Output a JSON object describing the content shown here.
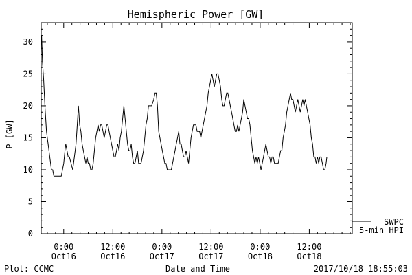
{
  "chart_data": {
    "type": "line",
    "title": "Hemispheric Power [GW]",
    "ylabel": "P [GW]",
    "xlabel": "Date and Time",
    "ylim": [
      0,
      33
    ],
    "xlim": [
      -5.5,
      70.5
    ],
    "x_unit": "hours since 2017-10-16 00:00",
    "yticks": [
      0,
      5,
      10,
      15,
      20,
      25,
      30
    ],
    "xticks": [
      {
        "x": 0,
        "time": "0:00",
        "date": "Oct16"
      },
      {
        "x": 12,
        "time": "12:00",
        "date": "Oct16"
      },
      {
        "x": 24,
        "time": "0:00",
        "date": "Oct17"
      },
      {
        "x": 36,
        "time": "12:00",
        "date": "Oct17"
      },
      {
        "x": 48,
        "time": "0:00",
        "date": "Oct18"
      },
      {
        "x": 60,
        "time": "12:00",
        "date": "Oct18"
      }
    ],
    "grid": false,
    "legend": {
      "source": "SWPC",
      "series": "5-min HPI",
      "placement": "bottom-right, outside"
    },
    "series": [
      {
        "name": "5-min HPI",
        "points": [
          [
            -5.4,
            31
          ],
          [
            -5.2,
            27
          ],
          [
            -4.9,
            24
          ],
          [
            -4.6,
            20
          ],
          [
            -4.2,
            16
          ],
          [
            -3.8,
            14
          ],
          [
            -3.4,
            12
          ],
          [
            -3.0,
            10
          ],
          [
            -2.7,
            10
          ],
          [
            -2.4,
            9
          ],
          [
            -1.5,
            9
          ],
          [
            -0.6,
            9
          ],
          [
            -0.3,
            10
          ],
          [
            0.0,
            11
          ],
          [
            0.3,
            13
          ],
          [
            0.5,
            14
          ],
          [
            0.8,
            13
          ],
          [
            1.1,
            12
          ],
          [
            1.4,
            12
          ],
          [
            1.8,
            11
          ],
          [
            2.2,
            10
          ],
          [
            2.6,
            12
          ],
          [
            3.0,
            14
          ],
          [
            3.3,
            17
          ],
          [
            3.6,
            20
          ],
          [
            3.9,
            17
          ],
          [
            4.2,
            16
          ],
          [
            4.5,
            14
          ],
          [
            4.8,
            13
          ],
          [
            5.1,
            12
          ],
          [
            5.4,
            11
          ],
          [
            5.7,
            12
          ],
          [
            6.0,
            11
          ],
          [
            6.3,
            11
          ],
          [
            6.6,
            10
          ],
          [
            6.9,
            10
          ],
          [
            7.2,
            11
          ],
          [
            7.5,
            13
          ],
          [
            7.8,
            15
          ],
          [
            8.1,
            16
          ],
          [
            8.4,
            17
          ],
          [
            8.7,
            16
          ],
          [
            9.0,
            17
          ],
          [
            9.3,
            17
          ],
          [
            9.6,
            16
          ],
          [
            9.9,
            15
          ],
          [
            10.2,
            16
          ],
          [
            10.5,
            17
          ],
          [
            10.8,
            17
          ],
          [
            11.1,
            16
          ],
          [
            11.4,
            15
          ],
          [
            11.7,
            14
          ],
          [
            12.0,
            13
          ],
          [
            12.3,
            12
          ],
          [
            12.6,
            12
          ],
          [
            12.9,
            13
          ],
          [
            13.2,
            14
          ],
          [
            13.5,
            13
          ],
          [
            13.8,
            15
          ],
          [
            14.1,
            16
          ],
          [
            14.4,
            18
          ],
          [
            14.7,
            20
          ],
          [
            15.0,
            18
          ],
          [
            15.3,
            16
          ],
          [
            15.6,
            14
          ],
          [
            15.9,
            13
          ],
          [
            16.2,
            13
          ],
          [
            16.5,
            14
          ],
          [
            16.8,
            12
          ],
          [
            17.1,
            11
          ],
          [
            17.4,
            11
          ],
          [
            17.7,
            12
          ],
          [
            18.0,
            13
          ],
          [
            18.3,
            11
          ],
          [
            18.6,
            11
          ],
          [
            18.9,
            11
          ],
          [
            19.2,
            12
          ],
          [
            19.5,
            13
          ],
          [
            19.8,
            15
          ],
          [
            20.1,
            17
          ],
          [
            20.4,
            18
          ],
          [
            20.7,
            20
          ],
          [
            21.0,
            20
          ],
          [
            21.5,
            20
          ],
          [
            22.0,
            21
          ],
          [
            22.3,
            22
          ],
          [
            22.6,
            22
          ],
          [
            22.9,
            20
          ],
          [
            23.2,
            16
          ],
          [
            23.5,
            15
          ],
          [
            23.8,
            14
          ],
          [
            24.1,
            13
          ],
          [
            24.4,
            12
          ],
          [
            24.7,
            11
          ],
          [
            25.0,
            11
          ],
          [
            25.3,
            10
          ],
          [
            25.6,
            10
          ],
          [
            26.0,
            10
          ],
          [
            26.3,
            10
          ],
          [
            26.6,
            11
          ],
          [
            26.9,
            12
          ],
          [
            27.2,
            13
          ],
          [
            27.5,
            14
          ],
          [
            27.8,
            15
          ],
          [
            28.1,
            16
          ],
          [
            28.4,
            14
          ],
          [
            28.7,
            14
          ],
          [
            29.0,
            13
          ],
          [
            29.3,
            12
          ],
          [
            29.6,
            12
          ],
          [
            29.9,
            13
          ],
          [
            30.2,
            12
          ],
          [
            30.5,
            11
          ],
          [
            30.8,
            13
          ],
          [
            31.1,
            15
          ],
          [
            31.4,
            16
          ],
          [
            31.7,
            17
          ],
          [
            32.0,
            17
          ],
          [
            32.3,
            17
          ],
          [
            32.6,
            16
          ],
          [
            32.9,
            16
          ],
          [
            33.2,
            16
          ],
          [
            33.5,
            15
          ],
          [
            33.8,
            16
          ],
          [
            34.1,
            17
          ],
          [
            34.4,
            18
          ],
          [
            34.7,
            19
          ],
          [
            35.0,
            20
          ],
          [
            35.3,
            22
          ],
          [
            35.6,
            23
          ],
          [
            35.9,
            24
          ],
          [
            36.2,
            25
          ],
          [
            36.5,
            24
          ],
          [
            36.8,
            23
          ],
          [
            37.1,
            24
          ],
          [
            37.4,
            25
          ],
          [
            37.7,
            25
          ],
          [
            38.0,
            24
          ],
          [
            38.3,
            23
          ],
          [
            38.6,
            21
          ],
          [
            38.9,
            20
          ],
          [
            39.2,
            20
          ],
          [
            39.5,
            21
          ],
          [
            39.8,
            22
          ],
          [
            40.1,
            22
          ],
          [
            40.4,
            21
          ],
          [
            40.7,
            20
          ],
          [
            41.0,
            19
          ],
          [
            41.3,
            18
          ],
          [
            41.6,
            17
          ],
          [
            41.9,
            16
          ],
          [
            42.2,
            16
          ],
          [
            42.5,
            17
          ],
          [
            42.8,
            16
          ],
          [
            43.1,
            17
          ],
          [
            43.4,
            18
          ],
          [
            43.7,
            19
          ],
          [
            44.0,
            21
          ],
          [
            44.3,
            20
          ],
          [
            44.6,
            19
          ],
          [
            44.9,
            18
          ],
          [
            45.2,
            18
          ],
          [
            45.5,
            17
          ],
          [
            45.8,
            15
          ],
          [
            46.1,
            13
          ],
          [
            46.4,
            12
          ],
          [
            46.7,
            11
          ],
          [
            47.0,
            12
          ],
          [
            47.3,
            11
          ],
          [
            47.6,
            12
          ],
          [
            47.9,
            11
          ],
          [
            48.2,
            10
          ],
          [
            48.5,
            11
          ],
          [
            48.8,
            12
          ],
          [
            49.1,
            13
          ],
          [
            49.4,
            14
          ],
          [
            49.7,
            13
          ],
          [
            50.0,
            12
          ],
          [
            50.3,
            12
          ],
          [
            50.6,
            11
          ],
          [
            50.9,
            12
          ],
          [
            51.2,
            12
          ],
          [
            51.5,
            11
          ],
          [
            51.8,
            11
          ],
          [
            52.1,
            11
          ],
          [
            52.4,
            11
          ],
          [
            52.7,
            12
          ],
          [
            53.0,
            13
          ],
          [
            53.3,
            13
          ],
          [
            53.6,
            15
          ],
          [
            53.9,
            16
          ],
          [
            54.2,
            17
          ],
          [
            54.5,
            19
          ],
          [
            54.8,
            20
          ],
          [
            55.1,
            21
          ],
          [
            55.4,
            22
          ],
          [
            55.7,
            21
          ],
          [
            56.0,
            21
          ],
          [
            56.3,
            20
          ],
          [
            56.6,
            19
          ],
          [
            56.9,
            20
          ],
          [
            57.2,
            21
          ],
          [
            57.5,
            20
          ],
          [
            57.8,
            19
          ],
          [
            58.1,
            20
          ],
          [
            58.4,
            21
          ],
          [
            58.7,
            20
          ],
          [
            59.0,
            21
          ],
          [
            59.3,
            20
          ],
          [
            59.6,
            19
          ],
          [
            59.9,
            18
          ],
          [
            60.2,
            17
          ],
          [
            60.5,
            15
          ],
          [
            60.8,
            14
          ],
          [
            61.1,
            12
          ],
          [
            61.4,
            12
          ],
          [
            61.7,
            11
          ],
          [
            62.0,
            12
          ],
          [
            62.3,
            11
          ],
          [
            62.6,
            12
          ],
          [
            62.9,
            12
          ],
          [
            63.2,
            11
          ],
          [
            63.5,
            10
          ],
          [
            63.8,
            10
          ],
          [
            64.1,
            11
          ],
          [
            64.3,
            12
          ]
        ]
      }
    ]
  },
  "footer": {
    "plot_credit": "Plot: CCMC",
    "timestamp": "2017/10/18 18:55:03"
  }
}
